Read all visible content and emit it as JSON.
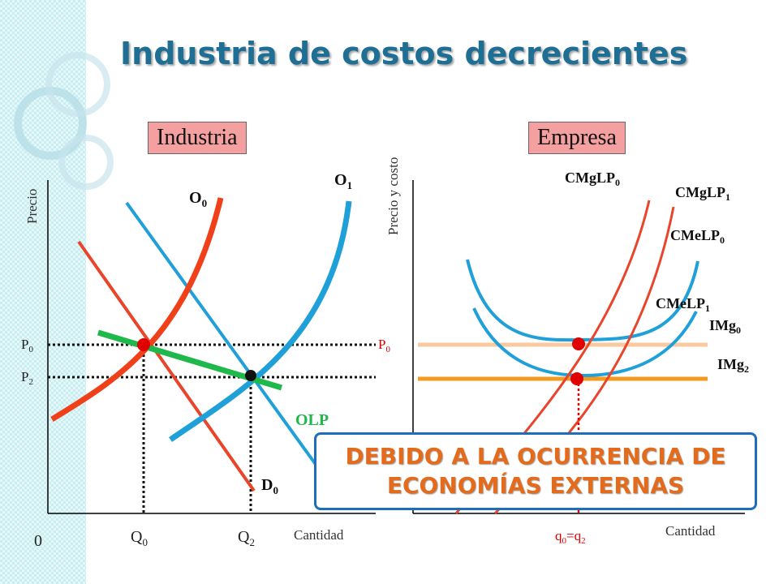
{
  "title": "Industria de costos decrecientes",
  "panels": {
    "industry": {
      "box_label": "Industria",
      "y_axis_label": "Precio",
      "x_axis_label": "Cantidad",
      "origin": "0",
      "price_levels": [
        {
          "main": "P",
          "sub": "0"
        },
        {
          "main": "P",
          "sub": "2"
        }
      ],
      "quantity_levels": [
        {
          "main": "Q",
          "sub": "0"
        },
        {
          "main": "Q",
          "sub": "2"
        }
      ],
      "curves": {
        "supply0": {
          "main": "O",
          "sub": "0"
        },
        "supply1": {
          "main": "O",
          "sub": "1"
        },
        "demand0": {
          "main": "D",
          "sub": "0"
        },
        "olp": "OLP"
      }
    },
    "firm": {
      "box_label": "Empresa",
      "y_axis_label": "Precio y costo",
      "x_axis_label": "Cantidad",
      "price_label": {
        "main": "P",
        "sub": "0"
      },
      "quantity_label": {
        "main": "q",
        "sub0": "0",
        "mid": "=q",
        "sub1": "2"
      },
      "curves": {
        "cmglp0": {
          "main": "CMgLP",
          "sub": "0"
        },
        "cmglp1": {
          "main": "CMgLP",
          "sub": "1"
        },
        "cmelp0": {
          "main": "CMeLP",
          "sub": "0"
        },
        "cmelp1": {
          "main": "CMeLP",
          "sub": "1"
        },
        "img0": {
          "main": "IMg",
          "sub": "0"
        },
        "img2": {
          "main": "IMg",
          "sub": "2"
        }
      }
    }
  },
  "banner": {
    "line1": "DEBIDO A LA OCURRENCIA DE",
    "line2": "ECONOMÍAS EXTERNAS"
  },
  "colors": {
    "supply": "#f0401a",
    "demand": "#e8452a",
    "supply_shifted": "#1fa0d8",
    "olp": "#1fb84a",
    "cost_curves": "#1fa0d8",
    "mc_curves": "#e8452a",
    "img0": "#f9c9a0",
    "img2": "#f39a1f",
    "accent_red": "#e00000",
    "title": "#1f6e94",
    "box": "#f4a0a0"
  }
}
